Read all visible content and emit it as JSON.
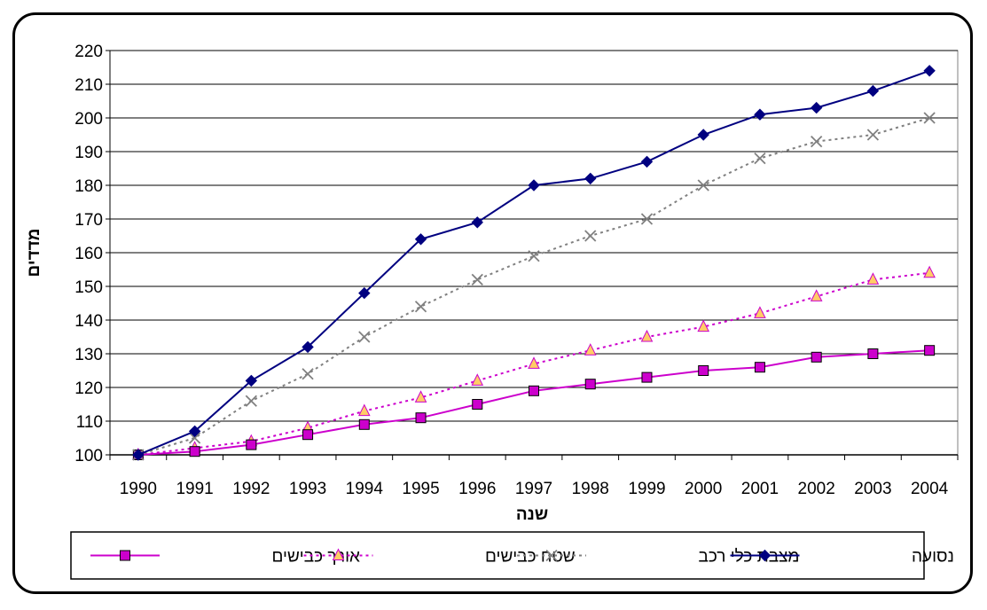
{
  "chart_data": {
    "type": "line",
    "title": "",
    "xlabel": "שנה",
    "ylabel": "מדדים",
    "ylim": [
      100,
      220
    ],
    "yticks": [
      100,
      110,
      120,
      130,
      140,
      150,
      160,
      170,
      180,
      190,
      200,
      210,
      220
    ],
    "grid": "horizontal",
    "legend_position": "bottom",
    "x": [
      "1990",
      "1991",
      "1992",
      "1993",
      "1994",
      "1995",
      "1996",
      "1997",
      "1998",
      "1999",
      "2000",
      "2001",
      "2002",
      "2003",
      "2004"
    ],
    "series": [
      {
        "name": "נסועה",
        "color": "#000080",
        "marker": "diamond",
        "line_style": "solid",
        "values": [
          100,
          107,
          122,
          132,
          148,
          164,
          169,
          180,
          182,
          187,
          195,
          201,
          203,
          208,
          214
        ]
      },
      {
        "name": "מצבת כלי רכב",
        "color": "#808080",
        "marker": "x",
        "line_style": "dotted",
        "values": [
          100,
          105,
          116,
          124,
          135,
          144,
          152,
          159,
          165,
          170,
          180,
          188,
          193,
          195,
          200
        ]
      },
      {
        "name": "שטח כבישים",
        "color": "#cc00cc",
        "marker": "triangle",
        "marker_fill": "#ffcc66",
        "line_style": "dotted",
        "values": [
          100,
          102,
          104,
          108,
          113,
          117,
          122,
          127,
          131,
          135,
          138,
          142,
          147,
          152,
          154
        ]
      },
      {
        "name": "אורך כבישים",
        "color": "#cc00cc",
        "marker": "square",
        "marker_fill": "#cc00cc",
        "line_style": "solid",
        "values": [
          100,
          101,
          103,
          106,
          109,
          111,
          115,
          119,
          121,
          123,
          125,
          126,
          129,
          130,
          131
        ]
      }
    ],
    "legend_order": [
      3,
      2,
      1,
      0
    ]
  }
}
